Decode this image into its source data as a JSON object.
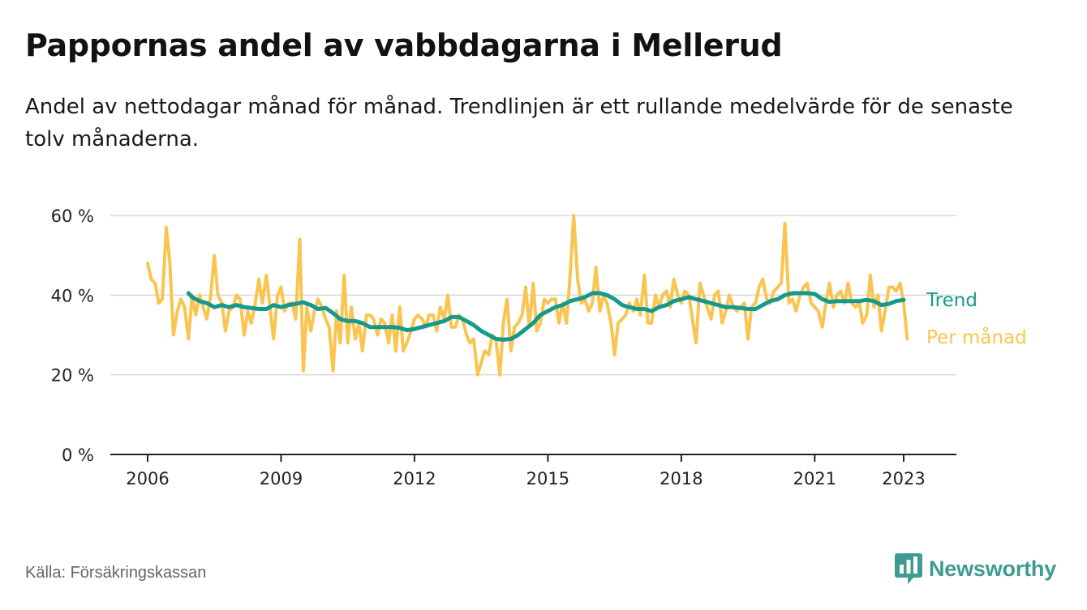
{
  "title": "Pappornas andel av vabbdagarna i Mellerud",
  "subtitle": "Andel av nettodagar månad för månad. Trendlinjen är ett rullande medelvärde för de senaste tolv månaderna.",
  "source": "Källa: Försäkringskassan",
  "logo": {
    "text": "Newsworthy",
    "icon": "bar-chart-speech-bubble-icon"
  },
  "colors": {
    "monthly": "#F9C550",
    "trend": "#16998A",
    "grid": "#d9d9d9",
    "axis": "#222222",
    "logo": "#3E9B92"
  },
  "chart_data": {
    "type": "line",
    "x_unit": "year (decimal)",
    "ylim": [
      0,
      60
    ],
    "yticks": [
      0,
      20,
      40,
      60
    ],
    "ytick_labels": [
      "0 %",
      "20 %",
      "40 %",
      "60 %"
    ],
    "xticks": [
      2006,
      2009,
      2012,
      2015,
      2018,
      2021,
      2023
    ],
    "xtick_labels": [
      "2006",
      "2009",
      "2012",
      "2015",
      "2018",
      "2021",
      "2023"
    ],
    "grid": true,
    "legend": "inline labels at line ends (right)",
    "series": [
      {
        "name": "Per månad",
        "color": "#F9C550",
        "points": [
          [
            2006.0,
            48
          ],
          [
            2006.08,
            44
          ],
          [
            2006.17,
            43
          ],
          [
            2006.25,
            38
          ],
          [
            2006.33,
            39
          ],
          [
            2006.42,
            57
          ],
          [
            2006.5,
            48
          ],
          [
            2006.58,
            30
          ],
          [
            2006.67,
            36
          ],
          [
            2006.75,
            39
          ],
          [
            2006.83,
            37
          ],
          [
            2006.92,
            29
          ],
          [
            2007.0,
            40
          ],
          [
            2007.08,
            35
          ],
          [
            2007.17,
            40
          ],
          [
            2007.25,
            37
          ],
          [
            2007.33,
            34
          ],
          [
            2007.42,
            40
          ],
          [
            2007.5,
            50
          ],
          [
            2007.58,
            40
          ],
          [
            2007.67,
            38
          ],
          [
            2007.75,
            31
          ],
          [
            2007.83,
            36
          ],
          [
            2007.92,
            37
          ],
          [
            2008.0,
            40
          ],
          [
            2008.08,
            39
          ],
          [
            2008.17,
            30
          ],
          [
            2008.25,
            36
          ],
          [
            2008.33,
            33
          ],
          [
            2008.42,
            38
          ],
          [
            2008.5,
            44
          ],
          [
            2008.58,
            38
          ],
          [
            2008.67,
            45
          ],
          [
            2008.75,
            37
          ],
          [
            2008.83,
            29
          ],
          [
            2008.92,
            40
          ],
          [
            2009.0,
            42
          ],
          [
            2009.08,
            36
          ],
          [
            2009.17,
            38
          ],
          [
            2009.25,
            38
          ],
          [
            2009.33,
            34
          ],
          [
            2009.42,
            54
          ],
          [
            2009.5,
            21
          ],
          [
            2009.58,
            37
          ],
          [
            2009.67,
            31
          ],
          [
            2009.75,
            36
          ],
          [
            2009.83,
            39
          ],
          [
            2009.92,
            37
          ],
          [
            2010.0,
            34
          ],
          [
            2010.08,
            32
          ],
          [
            2010.17,
            21
          ],
          [
            2010.25,
            36
          ],
          [
            2010.33,
            28
          ],
          [
            2010.42,
            45
          ],
          [
            2010.5,
            28
          ],
          [
            2010.58,
            37
          ],
          [
            2010.67,
            29
          ],
          [
            2010.75,
            33
          ],
          [
            2010.83,
            26
          ],
          [
            2010.92,
            35
          ],
          [
            2011.0,
            35
          ],
          [
            2011.08,
            34
          ],
          [
            2011.17,
            30
          ],
          [
            2011.25,
            34
          ],
          [
            2011.33,
            33
          ],
          [
            2011.42,
            28
          ],
          [
            2011.5,
            35
          ],
          [
            2011.58,
            26
          ],
          [
            2011.67,
            37
          ],
          [
            2011.75,
            26
          ],
          [
            2011.83,
            28
          ],
          [
            2011.92,
            31
          ],
          [
            2012.0,
            34
          ],
          [
            2012.08,
            35
          ],
          [
            2012.17,
            34
          ],
          [
            2012.25,
            32
          ],
          [
            2012.33,
            35
          ],
          [
            2012.42,
            35
          ],
          [
            2012.5,
            31
          ],
          [
            2012.58,
            37
          ],
          [
            2012.67,
            34
          ],
          [
            2012.75,
            40
          ],
          [
            2012.83,
            32
          ],
          [
            2012.92,
            32
          ],
          [
            2013.0,
            35
          ],
          [
            2013.08,
            34
          ],
          [
            2013.17,
            30
          ],
          [
            2013.25,
            28
          ],
          [
            2013.33,
            29
          ],
          [
            2013.42,
            20
          ],
          [
            2013.5,
            23
          ],
          [
            2013.58,
            26
          ],
          [
            2013.67,
            25
          ],
          [
            2013.75,
            30
          ],
          [
            2013.83,
            29
          ],
          [
            2013.92,
            20
          ],
          [
            2014.0,
            33
          ],
          [
            2014.08,
            39
          ],
          [
            2014.17,
            26
          ],
          [
            2014.25,
            32
          ],
          [
            2014.33,
            33
          ],
          [
            2014.42,
            35
          ],
          [
            2014.5,
            42
          ],
          [
            2014.58,
            32
          ],
          [
            2014.67,
            43
          ],
          [
            2014.75,
            31
          ],
          [
            2014.83,
            33
          ],
          [
            2014.92,
            39
          ],
          [
            2015.0,
            38
          ],
          [
            2015.08,
            39
          ],
          [
            2015.17,
            39
          ],
          [
            2015.25,
            33
          ],
          [
            2015.33,
            38
          ],
          [
            2015.42,
            33
          ],
          [
            2015.5,
            45
          ],
          [
            2015.58,
            60
          ],
          [
            2015.67,
            44
          ],
          [
            2015.75,
            38
          ],
          [
            2015.83,
            39
          ],
          [
            2015.92,
            36
          ],
          [
            2016.0,
            38
          ],
          [
            2016.08,
            47
          ],
          [
            2016.17,
            36
          ],
          [
            2016.25,
            40
          ],
          [
            2016.33,
            38
          ],
          [
            2016.42,
            33
          ],
          [
            2016.5,
            25
          ],
          [
            2016.58,
            33
          ],
          [
            2016.67,
            34
          ],
          [
            2016.75,
            35
          ],
          [
            2016.83,
            38
          ],
          [
            2016.92,
            36
          ],
          [
            2017.0,
            39
          ],
          [
            2017.08,
            35
          ],
          [
            2017.17,
            45
          ],
          [
            2017.25,
            33
          ],
          [
            2017.33,
            33
          ],
          [
            2017.42,
            40
          ],
          [
            2017.5,
            37
          ],
          [
            2017.58,
            40
          ],
          [
            2017.67,
            41
          ],
          [
            2017.75,
            37
          ],
          [
            2017.83,
            44
          ],
          [
            2017.92,
            40
          ],
          [
            2018.0,
            38
          ],
          [
            2018.08,
            41
          ],
          [
            2018.17,
            40
          ],
          [
            2018.25,
            34
          ],
          [
            2018.33,
            28
          ],
          [
            2018.42,
            43
          ],
          [
            2018.5,
            40
          ],
          [
            2018.58,
            37
          ],
          [
            2018.67,
            34
          ],
          [
            2018.75,
            40
          ],
          [
            2018.83,
            41
          ],
          [
            2018.92,
            33
          ],
          [
            2019.0,
            36
          ],
          [
            2019.08,
            40
          ],
          [
            2019.17,
            37
          ],
          [
            2019.25,
            36
          ],
          [
            2019.33,
            37
          ],
          [
            2019.42,
            38
          ],
          [
            2019.5,
            29
          ],
          [
            2019.58,
            37
          ],
          [
            2019.67,
            38
          ],
          [
            2019.75,
            42
          ],
          [
            2019.83,
            44
          ],
          [
            2019.92,
            39
          ],
          [
            2020.0,
            38
          ],
          [
            2020.08,
            41
          ],
          [
            2020.17,
            42
          ],
          [
            2020.25,
            43
          ],
          [
            2020.33,
            58
          ],
          [
            2020.42,
            38
          ],
          [
            2020.5,
            39
          ],
          [
            2020.58,
            36
          ],
          [
            2020.67,
            40
          ],
          [
            2020.75,
            42
          ],
          [
            2020.83,
            43
          ],
          [
            2020.92,
            38
          ],
          [
            2021.0,
            37
          ],
          [
            2021.08,
            36
          ],
          [
            2021.17,
            32
          ],
          [
            2021.25,
            38
          ],
          [
            2021.33,
            43
          ],
          [
            2021.42,
            37
          ],
          [
            2021.5,
            40
          ],
          [
            2021.58,
            41
          ],
          [
            2021.67,
            38
          ],
          [
            2021.75,
            43
          ],
          [
            2021.83,
            38
          ],
          [
            2021.92,
            37
          ],
          [
            2022.0,
            38
          ],
          [
            2022.08,
            33
          ],
          [
            2022.17,
            35
          ],
          [
            2022.25,
            45
          ],
          [
            2022.33,
            37
          ],
          [
            2022.42,
            40
          ],
          [
            2022.5,
            31
          ],
          [
            2022.58,
            36
          ],
          [
            2022.67,
            42
          ],
          [
            2022.75,
            42
          ],
          [
            2022.83,
            41
          ],
          [
            2022.92,
            43
          ],
          [
            2023.0,
            38
          ],
          [
            2023.08,
            29
          ]
        ]
      },
      {
        "name": "Trend",
        "color": "#16998A",
        "points": [
          [
            2006.92,
            40.5
          ],
          [
            2007.0,
            39.5
          ],
          [
            2007.17,
            38.5
          ],
          [
            2007.33,
            38
          ],
          [
            2007.5,
            37
          ],
          [
            2007.67,
            37.5
          ],
          [
            2007.83,
            37
          ],
          [
            2008.0,
            37.5
          ],
          [
            2008.17,
            37
          ],
          [
            2008.33,
            36.8
          ],
          [
            2008.5,
            36.5
          ],
          [
            2008.67,
            36.5
          ],
          [
            2008.83,
            37.5
          ],
          [
            2009.0,
            37
          ],
          [
            2009.17,
            37.5
          ],
          [
            2009.33,
            37.8
          ],
          [
            2009.5,
            38.2
          ],
          [
            2009.67,
            37.5
          ],
          [
            2009.83,
            36.5
          ],
          [
            2010.0,
            36.8
          ],
          [
            2010.17,
            35.5
          ],
          [
            2010.33,
            34
          ],
          [
            2010.5,
            33.5
          ],
          [
            2010.67,
            33.5
          ],
          [
            2010.83,
            33
          ],
          [
            2011.0,
            32
          ],
          [
            2011.17,
            32
          ],
          [
            2011.33,
            32
          ],
          [
            2011.5,
            32
          ],
          [
            2011.67,
            31.8
          ],
          [
            2011.83,
            31.2
          ],
          [
            2012.0,
            31.5
          ],
          [
            2012.17,
            32
          ],
          [
            2012.33,
            32.5
          ],
          [
            2012.5,
            33
          ],
          [
            2012.67,
            33.5
          ],
          [
            2012.83,
            34.5
          ],
          [
            2013.0,
            34.5
          ],
          [
            2013.17,
            33.5
          ],
          [
            2013.33,
            32.5
          ],
          [
            2013.5,
            31
          ],
          [
            2013.67,
            30
          ],
          [
            2013.83,
            29
          ],
          [
            2014.0,
            28.8
          ],
          [
            2014.17,
            29
          ],
          [
            2014.33,
            30
          ],
          [
            2014.5,
            31.5
          ],
          [
            2014.67,
            33
          ],
          [
            2014.83,
            35
          ],
          [
            2015.0,
            36
          ],
          [
            2015.17,
            37
          ],
          [
            2015.33,
            37.5
          ],
          [
            2015.5,
            38.5
          ],
          [
            2015.67,
            39
          ],
          [
            2015.83,
            39.5
          ],
          [
            2016.0,
            40.5
          ],
          [
            2016.17,
            40.5
          ],
          [
            2016.33,
            40
          ],
          [
            2016.5,
            39
          ],
          [
            2016.67,
            37.5
          ],
          [
            2016.83,
            37
          ],
          [
            2017.0,
            36.5
          ],
          [
            2017.17,
            36.5
          ],
          [
            2017.33,
            36
          ],
          [
            2017.5,
            37
          ],
          [
            2017.67,
            37.5
          ],
          [
            2017.83,
            38.5
          ],
          [
            2018.0,
            39
          ],
          [
            2018.17,
            39.5
          ],
          [
            2018.33,
            39
          ],
          [
            2018.5,
            38.5
          ],
          [
            2018.67,
            38
          ],
          [
            2018.83,
            37.5
          ],
          [
            2019.0,
            37
          ],
          [
            2019.17,
            37
          ],
          [
            2019.33,
            36.8
          ],
          [
            2019.5,
            36.5
          ],
          [
            2019.67,
            36.5
          ],
          [
            2019.83,
            37.5
          ],
          [
            2020.0,
            38.5
          ],
          [
            2020.17,
            39
          ],
          [
            2020.33,
            40
          ],
          [
            2020.5,
            40.5
          ],
          [
            2020.67,
            40.5
          ],
          [
            2020.83,
            40.5
          ],
          [
            2021.0,
            40.3
          ],
          [
            2021.17,
            39
          ],
          [
            2021.33,
            38.3
          ],
          [
            2021.5,
            38.5
          ],
          [
            2021.67,
            38.5
          ],
          [
            2021.83,
            38.5
          ],
          [
            2022.0,
            38.5
          ],
          [
            2022.17,
            38.8
          ],
          [
            2022.33,
            38.5
          ],
          [
            2022.5,
            37.5
          ],
          [
            2022.67,
            37.8
          ],
          [
            2022.83,
            38.5
          ],
          [
            2023.0,
            38.8
          ]
        ]
      }
    ]
  }
}
